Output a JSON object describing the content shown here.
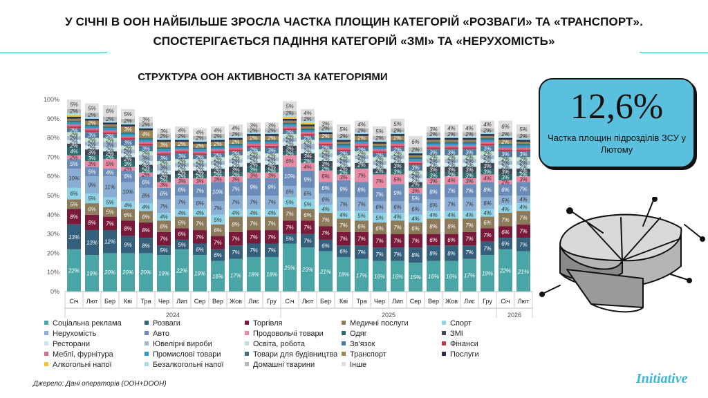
{
  "headline_line1": "У СІЧНІ В ООН НАЙБІЛЬШЕ ЗРОСЛА ЧАСТКА ПЛОЩИН КАТЕГОРІЙ «РОЗВАГИ» ТА «ТРАНСПОРТ».",
  "headline_line2": "СПОСТЕРІГАЄТЬСЯ ПАДІННЯ КАТЕГОРІЙ «ЗМІ» ТА «НЕРУХОМІСТЬ»",
  "kpi": {
    "value": "12,6%",
    "caption": "Частка площин підрозділів ЗСУ у Лютому"
  },
  "source": "Джерело: Дані операторів (OOH+DOOH)",
  "brand": "Initiative",
  "colors": {
    "Соціальна реклама": "#4aa6a6",
    "Розваги": "#34607c",
    "Торгівля": "#7a1a3a",
    "Медичні послуги": "#8c7a5a",
    "Спорт": "#8fd3e6",
    "Нерухомість": "#8aaed4",
    "Авто": "#6b8cb8",
    "Продовольчі товари": "#e88aa6",
    "Одяг": "#2d6b6f",
    "ЗМІ": "#3e4a56",
    "Ресторани": "#c8e7ee",
    "Ювелірні вироби": "#9fb6cf",
    "Освіта, робота": "#bfe3cf",
    "Зв'язок": "#4f7aa0",
    "Фінанси": "#c2384f",
    "Меблі, фурнітура": "#d86a8a",
    "Промислові товари": "#2b9ad1",
    "Товари для будівництва": "#3f6f78",
    "Транспорт": "#a08452",
    "Послуги": "#26324a",
    "Алкогольні напої": "#f2c530",
    "Безалкогольні напої": "#a8dced",
    "Домашні тварини": "#b8b8b8",
    "Інше": "#dedede"
  },
  "chart_data": {
    "type": "bar",
    "stacked": true,
    "title": "СТРУКТУРА ООН АКТИВНОСТІ ЗА КАТЕГОРІЯМИ",
    "ylim": [
      0,
      100
    ],
    "yticks": [
      "0%",
      "10%",
      "20%",
      "30%",
      "40%",
      "50%",
      "60%",
      "70%",
      "80%",
      "90%",
      "100%"
    ],
    "categories": [
      "Січ",
      "Лют",
      "Бер",
      "Кві",
      "Тра",
      "Чер",
      "Лип",
      "Сер",
      "Вер",
      "Жов",
      "Лис",
      "Гру",
      "Січ",
      "Лют",
      "Бер",
      "Кві",
      "Тра",
      "Чер",
      "Лип",
      "Сер",
      "Вер",
      "Жов",
      "Лис",
      "Гру",
      "Січ",
      "Лют"
    ],
    "year_groups": [
      {
        "label": "2024",
        "start": 0,
        "end": 11
      },
      {
        "label": "2025",
        "start": 12,
        "end": 23
      },
      {
        "label": "2026",
        "start": 24,
        "end": 25
      }
    ],
    "series": [
      {
        "name": "Соціальна реклама",
        "values": [
          22,
          19,
          20,
          20,
          20,
          19,
          22,
          19,
          16,
          17,
          18,
          18,
          25,
          23,
          21,
          18,
          17,
          16,
          16,
          15,
          16,
          16,
          17,
          19,
          22,
          21
        ]
      },
      {
        "name": "Розваги",
        "values": [
          13,
          13,
          12,
          9,
          8,
          5,
          5,
          6,
          6,
          7,
          7,
          7,
          5,
          7,
          6,
          6,
          7,
          7,
          7,
          8,
          8,
          8,
          7,
          7,
          6,
          7
        ]
      },
      {
        "name": "Торгівля",
        "values": [
          8,
          8,
          7,
          8,
          8,
          7,
          6,
          7,
          7,
          7,
          7,
          7,
          7,
          7,
          7,
          7,
          7,
          7,
          7,
          7,
          6,
          6,
          7,
          7,
          6,
          7
        ]
      },
      {
        "name": "Медичні послуги",
        "values": [
          5,
          6,
          5,
          6,
          6,
          6,
          6,
          7,
          6,
          8,
          7,
          7,
          7,
          6,
          7,
          7,
          6,
          6,
          7,
          6,
          8,
          8,
          7,
          6,
          7,
          7
        ]
      },
      {
        "name": "Спорт",
        "values": [
          6,
          5,
          5,
          4,
          4,
          4,
          4,
          4,
          5,
          4,
          4,
          4,
          5,
          5,
          4,
          4,
          5,
          5,
          4,
          4,
          4,
          4,
          4,
          4,
          4,
          4
        ]
      },
      {
        "name": "Нерухомість",
        "values": [
          10,
          9,
          11,
          10,
          8,
          7,
          7,
          6,
          7,
          7,
          7,
          7,
          6,
          6,
          6,
          7,
          7,
          6,
          6,
          6,
          6,
          7,
          7,
          6,
          5,
          4
        ]
      },
      {
        "name": "Авто",
        "values": [
          5,
          5,
          4,
          6,
          6,
          6,
          6,
          7,
          10,
          7,
          9,
          9,
          10,
          9,
          6,
          9,
          8,
          7,
          9,
          5,
          8,
          7,
          7,
          8,
          6,
          7
        ]
      },
      {
        "name": "Продовольчі товари",
        "values": [
          2,
          3,
          5,
          2,
          2,
          3,
          3,
          3,
          3,
          3,
          3,
          3,
          6,
          4,
          6,
          3,
          7,
          7,
          5,
          3,
          3,
          4,
          3,
          4,
          2,
          3
        ]
      },
      {
        "name": "Одяг",
        "values": [
          4,
          3,
          2,
          3,
          2,
          2,
          2,
          2,
          2,
          2,
          3,
          2,
          2,
          2,
          2,
          2,
          1,
          1,
          3,
          1,
          3,
          2,
          3,
          3,
          3,
          2
        ]
      },
      {
        "name": "ЗМІ",
        "values": [
          2,
          3,
          2,
          2,
          2,
          2,
          2,
          2,
          2,
          3,
          2,
          2,
          3,
          3,
          3,
          2,
          2,
          2,
          3,
          2,
          3,
          3,
          3,
          3,
          3,
          2
        ]
      },
      {
        "name": "Ресторани",
        "values": [
          2,
          2,
          2,
          2,
          2,
          2,
          2,
          2,
          2,
          2,
          2,
          2,
          2,
          2,
          2,
          2,
          2,
          2,
          2,
          2,
          2,
          2,
          2,
          2,
          2,
          2
        ]
      },
      {
        "name": "Ювелірні вироби",
        "values": [
          2,
          2,
          3,
          2,
          3,
          3,
          2,
          2,
          2,
          2,
          2,
          2,
          2,
          3,
          2,
          2,
          2,
          2,
          2,
          2,
          2,
          2,
          2,
          2,
          2,
          2
        ]
      },
      {
        "name": "Освіта, робота",
        "values": [
          2,
          2,
          2,
          2,
          2,
          2,
          2,
          2,
          2,
          2,
          2,
          2,
          2,
          2,
          2,
          2,
          2,
          2,
          2,
          2,
          2,
          2,
          2,
          2,
          2,
          2
        ]
      },
      {
        "name": "Зв'язок",
        "values": [
          2,
          3,
          2,
          3,
          3,
          3,
          3,
          2,
          2,
          2,
          2,
          3,
          2,
          2,
          2,
          2,
          2,
          2,
          2,
          3,
          3,
          3,
          3,
          3,
          3,
          3
        ]
      },
      {
        "name": "Фінанси",
        "values": [
          1,
          1,
          1,
          1,
          1,
          1,
          1,
          1,
          1,
          1,
          1,
          1,
          1,
          1,
          1,
          1,
          1,
          1,
          1,
          1,
          1,
          1,
          1,
          1,
          1,
          1
        ]
      },
      {
        "name": "Меблі, фурнітура",
        "values": [
          1,
          1,
          1,
          1,
          1,
          1,
          1,
          1,
          1,
          1,
          1,
          1,
          1,
          1,
          1,
          1,
          1,
          1,
          1,
          1,
          1,
          1,
          1,
          1,
          1,
          1
        ]
      },
      {
        "name": "Промислові товари",
        "values": [
          1,
          1,
          1,
          1,
          1,
          1,
          1,
          1,
          1,
          1,
          1,
          1,
          1,
          1,
          1,
          1,
          1,
          1,
          1,
          1,
          1,
          1,
          1,
          1,
          1,
          1
        ]
      },
      {
        "name": "Товари для будівництва",
        "values": [
          1,
          1,
          1,
          1,
          1,
          1,
          1,
          1,
          1,
          1,
          1,
          1,
          1,
          1,
          1,
          1,
          1,
          1,
          1,
          1,
          1,
          1,
          1,
          1,
          1,
          1
        ]
      },
      {
        "name": "Транспорт",
        "values": [
          1,
          2,
          1,
          3,
          4,
          3,
          2,
          2,
          2,
          2,
          2,
          2,
          1,
          1,
          2,
          1,
          2,
          1,
          2,
          1,
          1,
          1,
          1,
          1,
          2,
          1
        ]
      },
      {
        "name": "Послуги",
        "values": [
          1,
          1,
          1,
          1,
          1,
          1,
          1,
          1,
          1,
          1,
          1,
          1,
          1,
          1,
          1,
          1,
          1,
          1,
          1,
          1,
          1,
          1,
          1,
          1,
          1,
          1
        ]
      },
      {
        "name": "Алкогольні напої",
        "values": [
          1,
          0,
          0,
          0,
          0,
          0,
          0,
          0,
          0,
          0,
          0,
          0,
          1,
          1,
          0,
          0,
          0,
          0,
          0,
          0,
          0,
          0,
          0,
          0,
          0,
          0
        ]
      },
      {
        "name": "Безалкогольні напої",
        "values": [
          1,
          1,
          1,
          1,
          1,
          1,
          1,
          1,
          1,
          1,
          1,
          1,
          1,
          1,
          1,
          1,
          1,
          1,
          1,
          1,
          1,
          1,
          1,
          1,
          1,
          1
        ]
      },
      {
        "name": "Домашні тварини",
        "values": [
          2,
          2,
          2,
          2,
          2,
          2,
          2,
          2,
          2,
          2,
          2,
          2,
          2,
          2,
          2,
          2,
          2,
          2,
          2,
          2,
          2,
          2,
          2,
          2,
          2,
          2
        ]
      },
      {
        "name": "Інше",
        "values": [
          5,
          5,
          6,
          5,
          3,
          3,
          4,
          4,
          4,
          4,
          3,
          3,
          5,
          4,
          3,
          5,
          4,
          5,
          5,
          6,
          3,
          4,
          4,
          4,
          6,
          5
        ]
      }
    ]
  }
}
